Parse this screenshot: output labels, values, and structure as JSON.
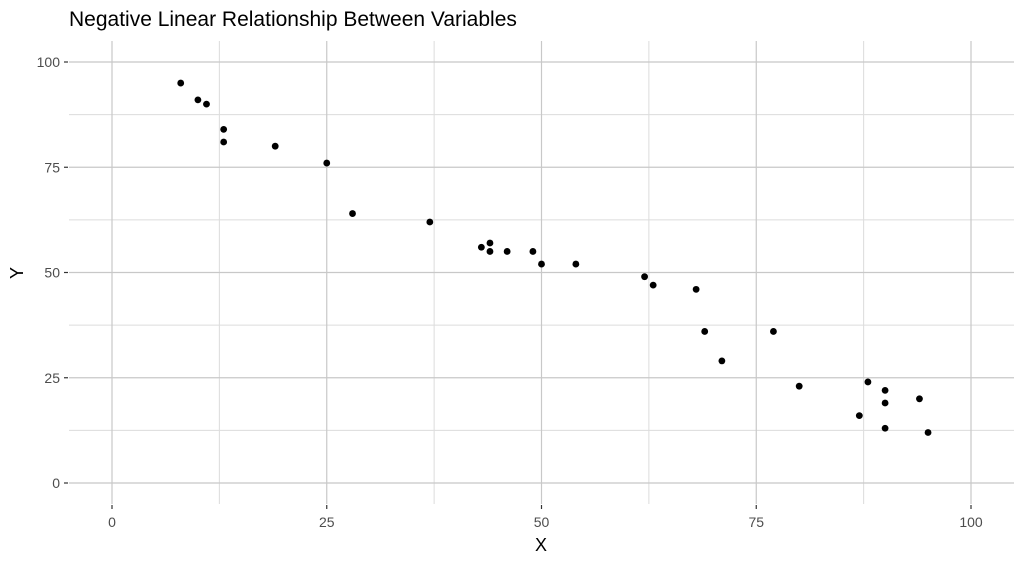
{
  "chart_data": {
    "type": "scatter",
    "title": "Negative Linear Relationship Between Variables",
    "xlabel": "X",
    "ylabel": "Y",
    "xlim": [
      -5,
      105
    ],
    "ylim": [
      -5,
      105
    ],
    "x_ticks": [
      0,
      25,
      50,
      75,
      100
    ],
    "y_ticks": [
      0,
      25,
      50,
      75,
      100
    ],
    "x_tick_labels": [
      "0",
      "25",
      "50",
      "75",
      "100"
    ],
    "y_tick_labels": [
      "0",
      "25",
      "50",
      "75",
      "100"
    ],
    "grid": true,
    "legend": null,
    "point_color": "#000000",
    "series": [
      {
        "name": "data",
        "points": [
          {
            "x": 8,
            "y": 95
          },
          {
            "x": 10,
            "y": 91
          },
          {
            "x": 11,
            "y": 90
          },
          {
            "x": 13,
            "y": 84
          },
          {
            "x": 13,
            "y": 81
          },
          {
            "x": 19,
            "y": 80
          },
          {
            "x": 25,
            "y": 76
          },
          {
            "x": 28,
            "y": 64
          },
          {
            "x": 37,
            "y": 62
          },
          {
            "x": 43,
            "y": 56
          },
          {
            "x": 44,
            "y": 57
          },
          {
            "x": 44,
            "y": 55
          },
          {
            "x": 46,
            "y": 55
          },
          {
            "x": 49,
            "y": 55
          },
          {
            "x": 50,
            "y": 52
          },
          {
            "x": 54,
            "y": 52
          },
          {
            "x": 62,
            "y": 49
          },
          {
            "x": 63,
            "y": 47
          },
          {
            "x": 68,
            "y": 46
          },
          {
            "x": 69,
            "y": 36
          },
          {
            "x": 71,
            "y": 29
          },
          {
            "x": 77,
            "y": 36
          },
          {
            "x": 80,
            "y": 23
          },
          {
            "x": 87,
            "y": 16
          },
          {
            "x": 88,
            "y": 24
          },
          {
            "x": 90,
            "y": 22
          },
          {
            "x": 90,
            "y": 19
          },
          {
            "x": 90,
            "y": 13
          },
          {
            "x": 94,
            "y": 20
          },
          {
            "x": 95,
            "y": 12
          }
        ]
      }
    ]
  }
}
